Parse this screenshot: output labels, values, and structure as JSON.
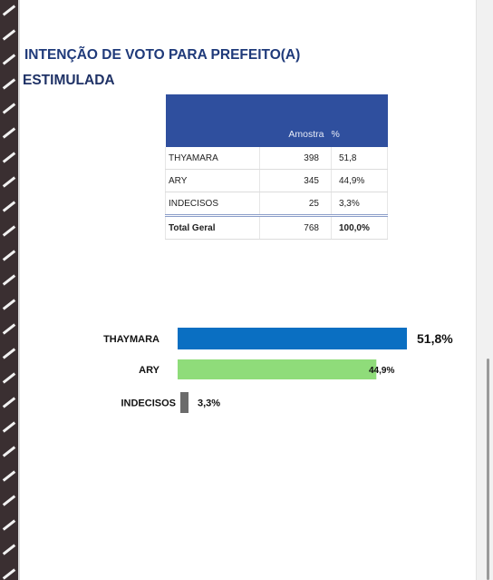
{
  "title_line1": "INTENÇÃO DE VOTO PARA PREFEITO(A)",
  "title_line2": "ESTIMULADA",
  "table": {
    "headers": [
      "",
      "Amostra",
      "%"
    ],
    "rows": [
      {
        "label": "THYAMARA",
        "amostra": "398",
        "pct": "51,8"
      },
      {
        "label": "ARY",
        "amostra": "345",
        "pct": "44,9%"
      },
      {
        "label": "INDECISOS",
        "amostra": "25",
        "pct": "3,3%"
      }
    ],
    "total": {
      "label": "Total Geral",
      "amostra": "768",
      "pct": "100,0%"
    }
  },
  "chart_data": {
    "type": "bar",
    "orientation": "horizontal",
    "categories": [
      "THAYMARA",
      "ARY",
      "INDECISOS"
    ],
    "values": [
      51.8,
      44.9,
      3.3
    ],
    "data_labels": [
      "51,8%",
      "44,9%",
      "3,3%"
    ],
    "colors": [
      "#0a6fc2",
      "#8fdc7a",
      "#6b6b6b"
    ],
    "xlim": [
      0,
      55
    ],
    "grid": false,
    "legend": "none"
  },
  "colors": {
    "title": "#1f3a7a",
    "table_header_bg": "#2f4f9e"
  }
}
